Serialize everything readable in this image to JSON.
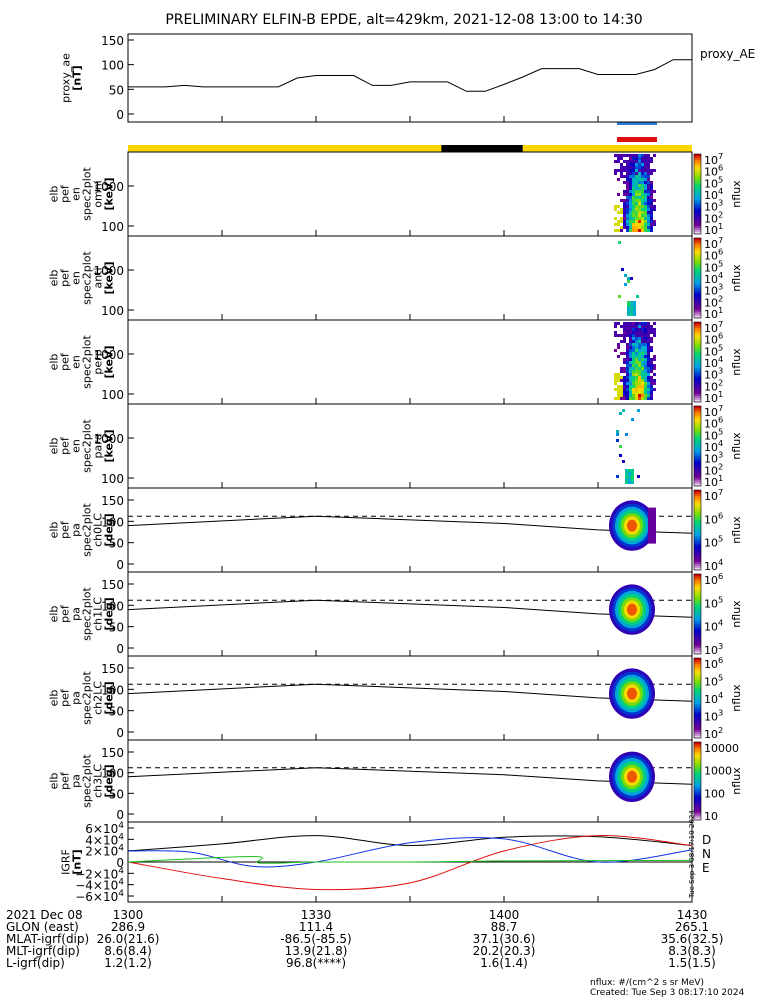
{
  "title": "PRELIMINARY ELFIN-B EPDE, alt=429km, 2021-12-08 13:00 to 14:30",
  "bar_colors": {
    "day": "#ffd700",
    "night": "#000000",
    "eclipse": "#000000"
  },
  "sc_markers": {
    "blue": "#2b7bd8",
    "red": "#e01010"
  },
  "panels": [
    {
      "id": "proxy_ae",
      "ylabel": [
        "proxy_ae",
        "[nT]"
      ],
      "right_label": "proxy_AE",
      "yticks": [
        "150",
        "100",
        "50",
        "0"
      ]
    },
    {
      "id": "omni",
      "ylabel": [
        "elb",
        "pef",
        "en",
        "spec2plot",
        "omni",
        "[keV]"
      ],
      "yticks": [
        "1000",
        "100"
      ],
      "cbar_label": "nflux",
      "cbar_ticks": [
        "10^7",
        "10^6",
        "10^5",
        "10^4",
        "10^3",
        "10^2",
        "10^1"
      ]
    },
    {
      "id": "anti",
      "ylabel": [
        "elb",
        "pef",
        "en",
        "spec2plot",
        "anti",
        "[keV]"
      ],
      "yticks": [
        "1000",
        "100"
      ],
      "cbar_label": "nflux",
      "cbar_ticks": [
        "10^7",
        "10^6",
        "10^5",
        "10^4",
        "10^3",
        "10^2",
        "10^1"
      ]
    },
    {
      "id": "perp",
      "ylabel": [
        "elb",
        "pef",
        "en",
        "spec2plot",
        "perp",
        "[keV]"
      ],
      "yticks": [
        "1000",
        "100"
      ],
      "cbar_label": "nflux",
      "cbar_ticks": [
        "10^7",
        "10^6",
        "10^5",
        "10^4",
        "10^3",
        "10^2",
        "10^1"
      ]
    },
    {
      "id": "para",
      "ylabel": [
        "elb",
        "pef",
        "en",
        "spec2plot",
        "para",
        "[keV]"
      ],
      "yticks": [
        "1000",
        "100"
      ],
      "cbar_label": "nflux",
      "cbar_ticks": [
        "10^7",
        "10^6",
        "10^5",
        "10^4",
        "10^3",
        "10^2",
        "10^1"
      ]
    },
    {
      "id": "ch0LC",
      "ylabel": [
        "elb",
        "pef",
        "pa",
        "spec2plot",
        "ch0LC",
        "[deg]"
      ],
      "yticks": [
        "150",
        "100",
        "50",
        "0"
      ],
      "cbar_label": "nflux",
      "cbar_ticks": [
        "10^7",
        "10^6",
        "10^5",
        "10^4"
      ]
    },
    {
      "id": "ch1LC",
      "ylabel": [
        "elb",
        "pef",
        "pa",
        "spec2plot",
        "ch1LC",
        "[deg]"
      ],
      "yticks": [
        "150",
        "100",
        "50",
        "0"
      ],
      "cbar_label": "nflux",
      "cbar_ticks": [
        "10^6",
        "10^5",
        "10^4",
        "10^3"
      ]
    },
    {
      "id": "ch2LC",
      "ylabel": [
        "elb",
        "pef",
        "pa",
        "spec2plot",
        "ch2LC",
        "[deg]"
      ],
      "yticks": [
        "150",
        "100",
        "50",
        "0"
      ],
      "cbar_label": "nflux",
      "cbar_ticks": [
        "10^6",
        "10^5",
        "10^4",
        "10^3",
        "10^2"
      ]
    },
    {
      "id": "ch3LC",
      "ylabel": [
        "elb",
        "pef",
        "pa",
        "spec2plot",
        "ch3LC",
        "[deg]"
      ],
      "yticks": [
        "150",
        "100",
        "50",
        "0"
      ],
      "cbar_label": "nflux",
      "cbar_ticks": [
        "10000",
        "1000",
        "100",
        "10"
      ]
    },
    {
      "id": "igrf",
      "ylabel": [
        "IGRF",
        "[nT]"
      ],
      "yticks": [
        "6×10^4",
        "4×10^4",
        "2×10^4",
        "0",
        "−2×10^4",
        "−4×10^4",
        "−6×10^4"
      ],
      "legend": [
        {
          "text": "D",
          "color": "#e01010"
        },
        {
          "text": "N",
          "color": "#1030e0"
        },
        {
          "text": "E",
          "color": "#20c020"
        }
      ],
      "side_note": "Tue Sep  3 08:17:10 2024"
    }
  ],
  "orbit_table": {
    "rows": [
      {
        "label": "2021 Dec 08",
        "values": [
          "1300",
          "1330",
          "1400",
          "1430"
        ]
      },
      {
        "label": "GLON (east)",
        "values": [
          "286.9",
          "111.4",
          "88.7",
          "265.1"
        ]
      },
      {
        "label": "MLAT-igrf(dip)",
        "values": [
          "26.0(21.6)",
          "-86.5(-85.5)",
          "37.1(30.6)",
          "35.6(32.5)"
        ]
      },
      {
        "label": "MLT-igrf(dip)",
        "values": [
          "8.6(8.4)",
          "13.9(21.8)",
          "20.2(20.3)",
          "8.3(8.3)"
        ]
      },
      {
        "label": "L-igrf(dip)",
        "values": [
          "1.2(1.2)",
          "96.8(****)",
          "1.6(1.4)",
          "1.5(1.5)"
        ]
      }
    ]
  },
  "footer": {
    "units": "nflux: #/(cm^2 s sr MeV)",
    "created": "Created: Tue Sep  3 08:17:10 2024"
  },
  "chart_data": [
    {
      "type": "line",
      "title": "PRELIMINARY ELFIN-B EPDE, alt=429km, 2021-12-08 13:00 to 14:30",
      "ylabel": "proxy_ae [nT]",
      "ylim": [
        0,
        150
      ],
      "x_unit": "minutes after 13:00",
      "series": [
        {
          "name": "proxy_AE",
          "x": [
            0,
            6,
            9,
            12,
            18,
            24,
            27,
            30,
            33,
            36,
            39,
            42,
            45,
            48,
            51,
            54,
            57,
            60,
            63,
            66,
            69,
            72,
            75,
            78,
            81,
            84,
            87,
            90
          ],
          "y": [
            55,
            55,
            58,
            55,
            55,
            55,
            73,
            78,
            78,
            78,
            58,
            58,
            65,
            65,
            65,
            46,
            46,
            60,
            75,
            92,
            92,
            92,
            80,
            80,
            80,
            90,
            110,
            110
          ]
        }
      ]
    },
    {
      "type": "heatmap",
      "ylabel": "en omni [keV]",
      "time_range": [
        "14:16",
        "14:23"
      ]
    },
    {
      "type": "heatmap",
      "ylabel": "en anti [keV]",
      "time_range": [
        "14:19",
        "14:21"
      ]
    },
    {
      "type": "heatmap",
      "ylabel": "en perp [keV]",
      "time_range": [
        "14:16",
        "14:23"
      ]
    },
    {
      "type": "heatmap",
      "ylabel": "en para [keV]",
      "time_range": [
        "14:18",
        "14:21"
      ]
    },
    {
      "type": "heatmap",
      "ylabel": "pa ch0LC [deg]",
      "time_range": [
        "14:16",
        "14:23"
      ]
    },
    {
      "type": "heatmap",
      "ylabel": "pa ch1LC [deg]",
      "time_range": [
        "14:17",
        "14:23"
      ]
    },
    {
      "type": "heatmap",
      "ylabel": "pa ch2LC [deg]",
      "time_range": [
        "14:17",
        "14:23"
      ]
    },
    {
      "type": "heatmap",
      "ylabel": "pa ch3LC [deg]",
      "time_range": [
        "14:17",
        "14:23"
      ]
    },
    {
      "type": "line",
      "ylabel": "IGRF [nT]",
      "ylim": [
        -60000,
        60000
      ],
      "x_unit": "minutes after 13:00",
      "series": [
        {
          "name": "black",
          "x": [
            0,
            15,
            30,
            45,
            60,
            75,
            90
          ],
          "y": [
            20000,
            33000,
            48000,
            30000,
            45000,
            46000,
            30000
          ]
        },
        {
          "name": "D",
          "x": [
            0,
            15,
            30,
            45,
            60,
            75,
            90
          ],
          "y": [
            0,
            -30000,
            -50000,
            -38000,
            20000,
            48000,
            30000
          ]
        },
        {
          "name": "N",
          "x": [
            0,
            10,
            20,
            30,
            45,
            60,
            75,
            90
          ],
          "y": [
            20000,
            18000,
            -8000,
            0,
            35000,
            42000,
            0,
            22000
          ]
        },
        {
          "name": "E",
          "x": [
            0,
            20,
            21,
            30,
            45,
            60,
            90
          ],
          "y": [
            0,
            10000,
            -2000,
            0,
            0,
            2000,
            3000
          ]
        }
      ]
    }
  ]
}
